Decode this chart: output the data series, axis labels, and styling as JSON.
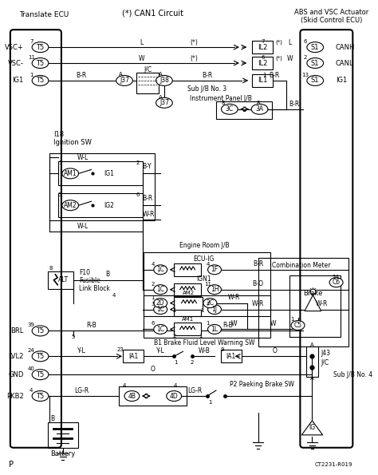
{
  "title": "(*) CAN1 Circuit",
  "title_left": "Translate ECU",
  "title_right_1": "ABS and VSC Actuator",
  "title_right_2": "(Skid Control ECU)",
  "footer_left": "P",
  "footer_right": "CT2231-R019",
  "bg_color": "#ffffff",
  "line_color": "#000000",
  "text_color": "#000000"
}
